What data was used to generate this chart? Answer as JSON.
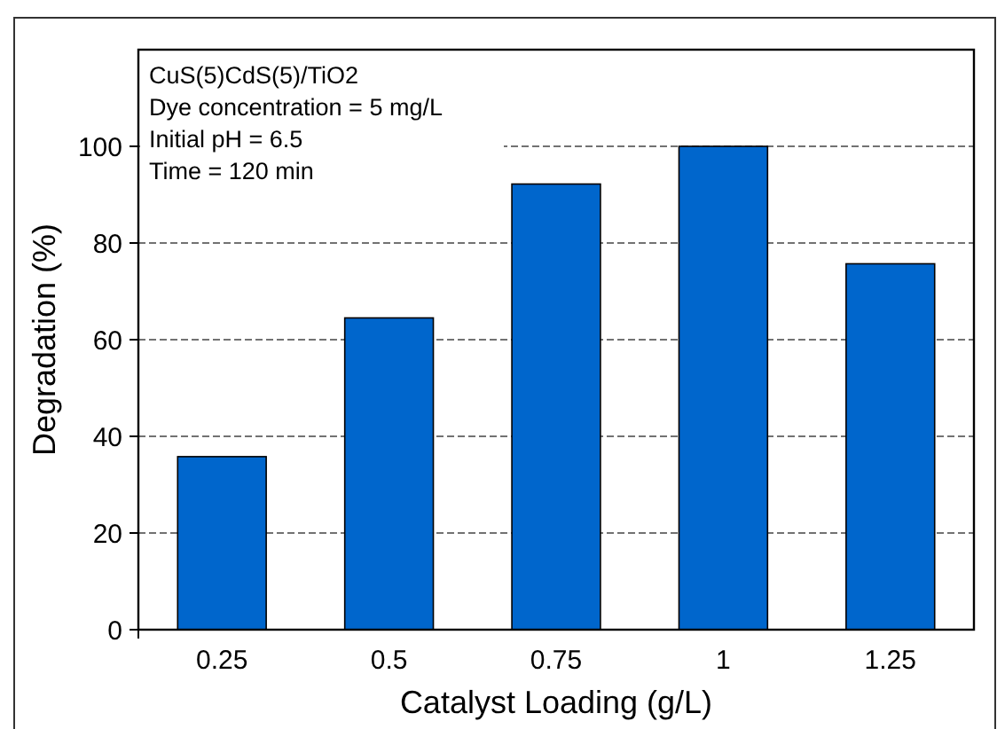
{
  "chart_data": {
    "type": "bar",
    "xlabel": "Catalyst Loading (g/L)",
    "ylabel": "Degradation (%)",
    "categories": [
      "0.25",
      "0.5",
      "0.75",
      "1",
      "1.25"
    ],
    "values": [
      35.8,
      64.5,
      92.2,
      100,
      75.7
    ],
    "color": "#0066cc",
    "ylim": [
      0,
      120
    ],
    "yticks": [
      0,
      20,
      40,
      60,
      80,
      100
    ],
    "grid": "y",
    "annotations": [
      "CuS(5)CdS(5)/TiO2",
      "Dye concentration = 5 mg/L",
      "Initial pH = 6.5",
      "Time = 120 min"
    ]
  }
}
